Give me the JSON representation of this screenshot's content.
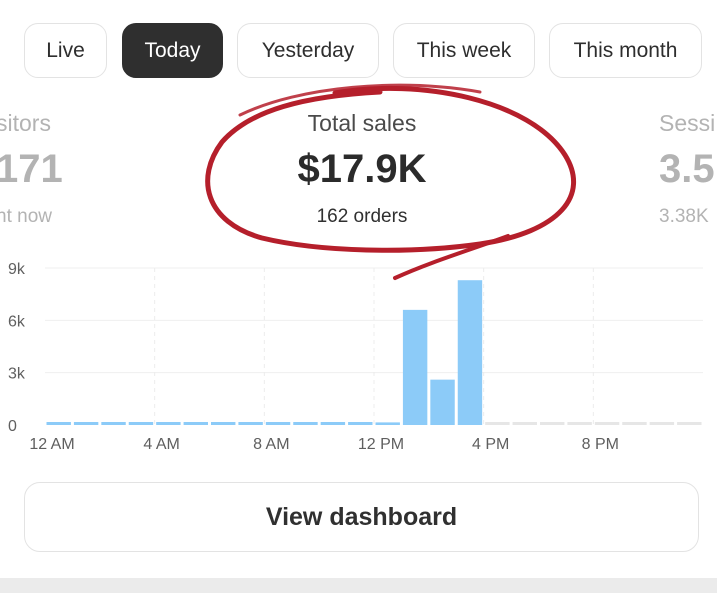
{
  "tabs": [
    {
      "label": "Live",
      "active": false
    },
    {
      "label": "Today",
      "active": true
    },
    {
      "label": "Yesterday",
      "active": false
    },
    {
      "label": "This week",
      "active": false
    },
    {
      "label": "This month",
      "active": false
    }
  ],
  "metrics": {
    "left": {
      "label": "sitors",
      "value": "171",
      "sub": "ht now"
    },
    "center": {
      "label": "Total sales",
      "value": "$17.9K",
      "sub": "162 orders"
    },
    "right": {
      "label": "Sessi",
      "value": "3.5",
      "sub": "3.38K"
    }
  },
  "annotation": {
    "color": "#b51f2b",
    "shape": "hand-drawn circle around total sales"
  },
  "chart_data": {
    "type": "bar",
    "categories": [
      "12 AM",
      "1 AM",
      "2 AM",
      "3 AM",
      "4 AM",
      "5 AM",
      "6 AM",
      "7 AM",
      "8 AM",
      "9 AM",
      "10 AM",
      "11 AM",
      "12 PM",
      "1 PM",
      "2 PM",
      "3 PM",
      "4 PM",
      "5 PM",
      "6 PM",
      "7 PM",
      "8 PM",
      "9 PM",
      "10 PM",
      "11 PM"
    ],
    "x_tick_labels": [
      "12 AM",
      "4 AM",
      "8 AM",
      "12 PM",
      "4 PM",
      "8 PM"
    ],
    "y_tick_labels": [
      "9k",
      "6k",
      "3k",
      "0"
    ],
    "ylim": [
      0,
      9000
    ],
    "values": [
      0,
      0,
      0,
      0,
      0,
      0,
      0,
      0,
      0,
      0,
      0,
      0,
      150,
      6600,
      2600,
      8300,
      null,
      null,
      null,
      null,
      null,
      null,
      null,
      null
    ],
    "bar_color": "#8ccbf8",
    "future_color": "#e6e6e6",
    "grid": true
  },
  "button": {
    "label": "View dashboard"
  }
}
